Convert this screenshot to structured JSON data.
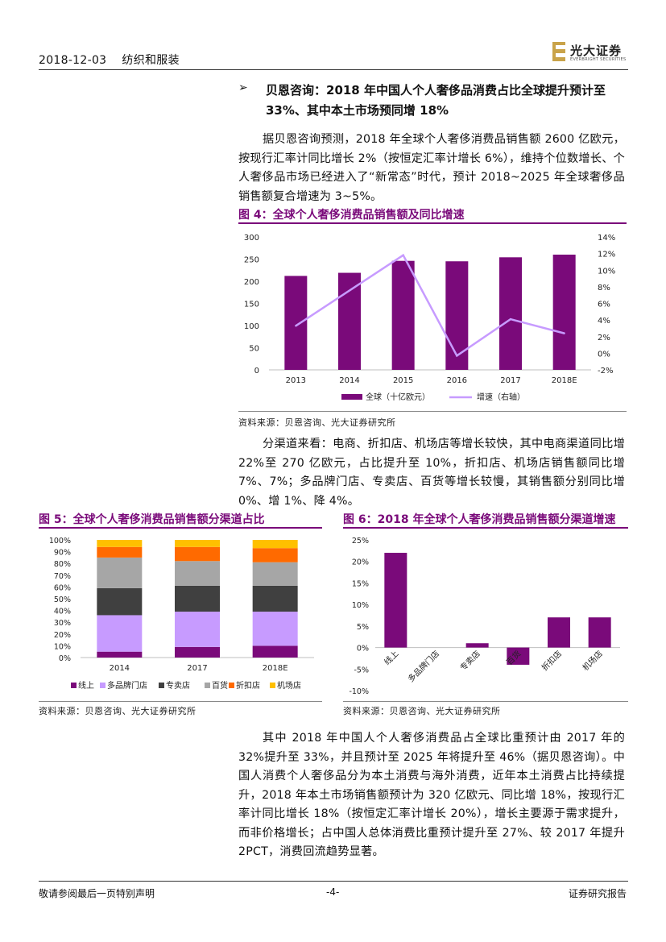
{
  "header": {
    "date": "2018-12-03",
    "industry": "纺织和服装",
    "logo_cn": "光大证券",
    "logo_en": "EVERBRIGHT SECURITIES"
  },
  "section": {
    "bullet": "➢",
    "heading": "贝恩咨询：2018 年中国人个人奢侈品消费占比全球提升预计至 33%、其中本土市场预同增 18%"
  },
  "paragraphs": {
    "p1": "据贝恩咨询预测，2018 年全球个人奢侈消费品销售额 2600 亿欧元，按现行汇率计同比增长 2%（按恒定汇率计增长 6%），维持个位数增长、个人奢侈品市场已经进入了“新常态”时代，预计 2018~2025 年全球奢侈品销售额复合增速为 3~5%。",
    "p2": "分渠道来看：电商、折扣店、机场店等增长较快，其中电商渠道同比增 22%至 270 亿欧元，占比提升至 10%，折扣店、机场店销售额同比增 7%、7%；多品牌门店、专卖店、百货等增长较慢，其销售额分别同比增 0%、增 1%、降 4%。",
    "p3": "其中 2018 年中国人个人奢侈消费品占全球比重预计由 2017 年的 32%提升至 33%，并且预计至 2025 年将提升至 46%（据贝恩咨询）。中国人消费个人奢侈品分为本土消费与海外消费，近年本土消费占比持续提升，2018 年本土市场销售额预计为 320 亿欧元、同比增 18%，按现行汇率计同比增长 18%（按恒定汇率计增长 20%），增长主要源于需求提升，而非价格增长；占中国人总体消费比重预计提升至 27%、较 2017 年提升 2PCT，消费回流趋势显著。"
  },
  "figures": {
    "fig4_title": "图 4：全球个人奢侈消费品销售额及同比增速",
    "fig5_title": "图 5：全球个人奢侈消费品销售额分渠道占比",
    "fig6_title": "图 6：2018 年全球个人奢侈消费品销售额分渠道增速",
    "source": "资料来源：贝恩咨询、光大证券研究所"
  },
  "colors": {
    "purple": "#7a0a7a",
    "lavender": "#c79bff",
    "dark_gray": "#404040",
    "gray": "#a6a6a6",
    "orange": "#ff6a00",
    "yellow": "#ffc000"
  },
  "chart_data": [
    {
      "id": "fig4",
      "type": "bar",
      "categories": [
        "2013",
        "2014",
        "2015",
        "2016",
        "2017",
        "2018E"
      ],
      "series": [
        {
          "name": "全球（十亿欧元）",
          "type": "bar",
          "axis": "left",
          "values": [
            212,
            219,
            246,
            245,
            254,
            260
          ]
        },
        {
          "name": "增速（右轴）",
          "type": "line",
          "axis": "right",
          "values": [
            3.3,
            null,
            11.8,
            -0.3,
            4.1,
            2.4
          ]
        }
      ],
      "yticks_left": [
        "300",
        "250",
        "200",
        "150",
        "100",
        "50",
        "0"
      ],
      "ylim_left": [
        0,
        300
      ],
      "yticks_right": [
        "14%",
        "12%",
        "10%",
        "8%",
        "6%",
        "4%",
        "2%",
        "0%",
        "-2%"
      ],
      "ylim_right": [
        -2,
        14
      ],
      "legend": "bottom"
    },
    {
      "id": "fig5",
      "type": "bar",
      "stacked": true,
      "categories": [
        "2014",
        "2017",
        "2018E"
      ],
      "series": [
        {
          "name": "线上",
          "values": [
            5,
            9,
            10
          ]
        },
        {
          "name": "多品牌门店",
          "values": [
            31,
            30,
            29
          ]
        },
        {
          "name": "专卖店",
          "values": [
            23,
            22,
            22
          ]
        },
        {
          "name": "百货",
          "values": [
            26,
            21,
            20
          ]
        },
        {
          "name": "折扣店",
          "values": [
            9,
            12,
            12
          ]
        },
        {
          "name": "机场店",
          "values": [
            6,
            6,
            7
          ]
        }
      ],
      "yticks": [
        "100%",
        "90%",
        "80%",
        "70%",
        "60%",
        "50%",
        "40%",
        "30%",
        "20%",
        "10%",
        "0%"
      ],
      "ylim": [
        0,
        100
      ],
      "legend": "bottom"
    },
    {
      "id": "fig6",
      "type": "bar",
      "categories": [
        "线上",
        "多品牌门店",
        "专卖店",
        "百货",
        "折扣店",
        "机场店"
      ],
      "values": [
        22,
        0,
        1,
        -4,
        7,
        7
      ],
      "yticks": [
        "25%",
        "20%",
        "15%",
        "10%",
        "5%",
        "0%",
        "-5%",
        "-10%"
      ],
      "ylim": [
        -10,
        25
      ]
    }
  ],
  "footer": {
    "left": "敬请参阅最后一页特别声明",
    "center": "-4-",
    "right": "证券研究报告"
  }
}
